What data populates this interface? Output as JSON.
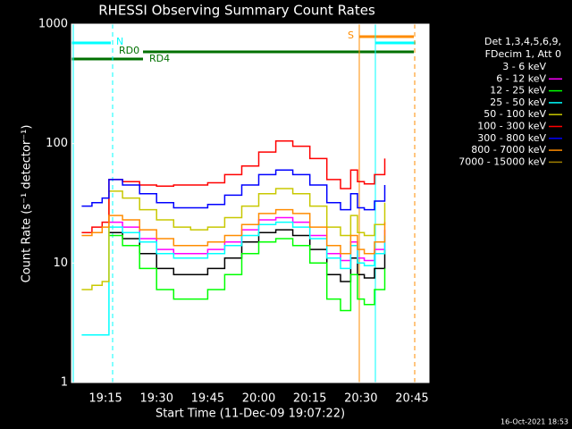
{
  "chart_data": {
    "type": "line",
    "title": "RHESSI Observing Summary Count Rates",
    "x_label": "Start Time (11-Dec-09 19:07:22)",
    "y_label": "Count Rate (s⁻¹ detector⁻¹)",
    "log_y": true,
    "xlim": [
      1145,
      1250
    ],
    "ylim": [
      1,
      1000
    ],
    "xticks": [
      {
        "value": 1155,
        "label": "19:15"
      },
      {
        "value": 1170,
        "label": "19:30"
      },
      {
        "value": 1185,
        "label": "19:45"
      },
      {
        "value": 1200,
        "label": "20:00"
      },
      {
        "value": 1215,
        "label": "20:15"
      },
      {
        "value": 1230,
        "label": "20:30"
      },
      {
        "value": 1245,
        "label": "20:45"
      }
    ],
    "yticks": [
      1,
      10,
      100,
      1000
    ],
    "legend_header": [
      "Det 1,3,4,5,6,9,",
      "FDecim 1, Att 0"
    ],
    "annotations": [
      "N",
      "RD0",
      "RD4",
      "S"
    ],
    "footer": "16-Oct-2021 18:53",
    "x": [
      1148,
      1151,
      1154,
      1156,
      1160,
      1165,
      1170,
      1175,
      1180,
      1185,
      1190,
      1195,
      1200,
      1205,
      1210,
      1215,
      1220,
      1224,
      1227,
      1229,
      1231,
      1234,
      1237
    ],
    "series": [
      {
        "name": "3 - 6 keV",
        "color": "#000000",
        "values": [
          null,
          null,
          null,
          18,
          16,
          12,
          9,
          8,
          8,
          9,
          11,
          15,
          18,
          19,
          17,
          13,
          8,
          7,
          11,
          8,
          7.5,
          9,
          13
        ]
      },
      {
        "name": "6 - 12 keV",
        "color": "#ff00ff",
        "values": [
          null,
          null,
          null,
          22,
          20,
          16,
          13,
          12,
          12,
          13,
          15,
          19,
          23,
          24,
          22,
          17,
          12,
          10.5,
          15,
          11,
          10.5,
          13,
          19
        ]
      },
      {
        "name": "12 - 25 keV",
        "color": "#00ff00",
        "values": [
          null,
          null,
          null,
          17,
          14,
          9,
          6,
          5,
          5,
          6,
          8,
          12,
          15,
          16,
          14,
          10,
          5,
          4,
          8,
          5,
          4.5,
          6,
          9
        ]
      },
      {
        "name": "25 - 50 keV",
        "color": "#00ffff",
        "values": [
          2.5,
          2.5,
          2.5,
          20,
          18,
          15,
          12,
          11,
          11,
          12,
          14,
          17,
          21,
          22,
          20,
          16,
          11,
          9,
          14,
          10,
          9.5,
          12,
          17
        ]
      },
      {
        "name": "50 - 100 keV",
        "color": "#c8c800",
        "values": [
          6,
          6.5,
          7,
          40,
          35,
          28,
          23,
          20,
          19,
          20,
          24,
          30,
          38,
          42,
          38,
          30,
          20,
          17,
          25,
          18,
          17,
          21,
          32
        ]
      },
      {
        "name": "100 - 300 keV",
        "color": "#ff0000",
        "values": [
          18,
          20,
          22,
          50,
          48,
          45,
          44,
          45,
          45,
          47,
          55,
          65,
          85,
          105,
          95,
          75,
          50,
          42,
          60,
          48,
          46,
          55,
          75
        ]
      },
      {
        "name": "300 - 800 keV",
        "color": "#0000ff",
        "values": [
          30,
          32,
          35,
          50,
          45,
          38,
          32,
          29,
          29,
          31,
          37,
          45,
          55,
          60,
          55,
          45,
          32,
          28,
          38,
          29,
          28,
          33,
          45
        ]
      },
      {
        "name": "800 - 7000 keV",
        "color": "#ff8c00",
        "values": [
          17,
          18,
          20,
          25,
          23,
          19,
          16,
          14,
          14,
          15,
          17,
          21,
          26,
          28,
          26,
          20,
          14,
          12,
          17,
          13,
          12,
          15,
          22
        ]
      },
      {
        "name": "7000 - 15000 keV",
        "color": "#a08000",
        "values": [
          null,
          null,
          null,
          null,
          null,
          null,
          null,
          null,
          null,
          null,
          null,
          null,
          null,
          null,
          null,
          null,
          null,
          null,
          null,
          null,
          null,
          null,
          null
        ]
      }
    ]
  }
}
